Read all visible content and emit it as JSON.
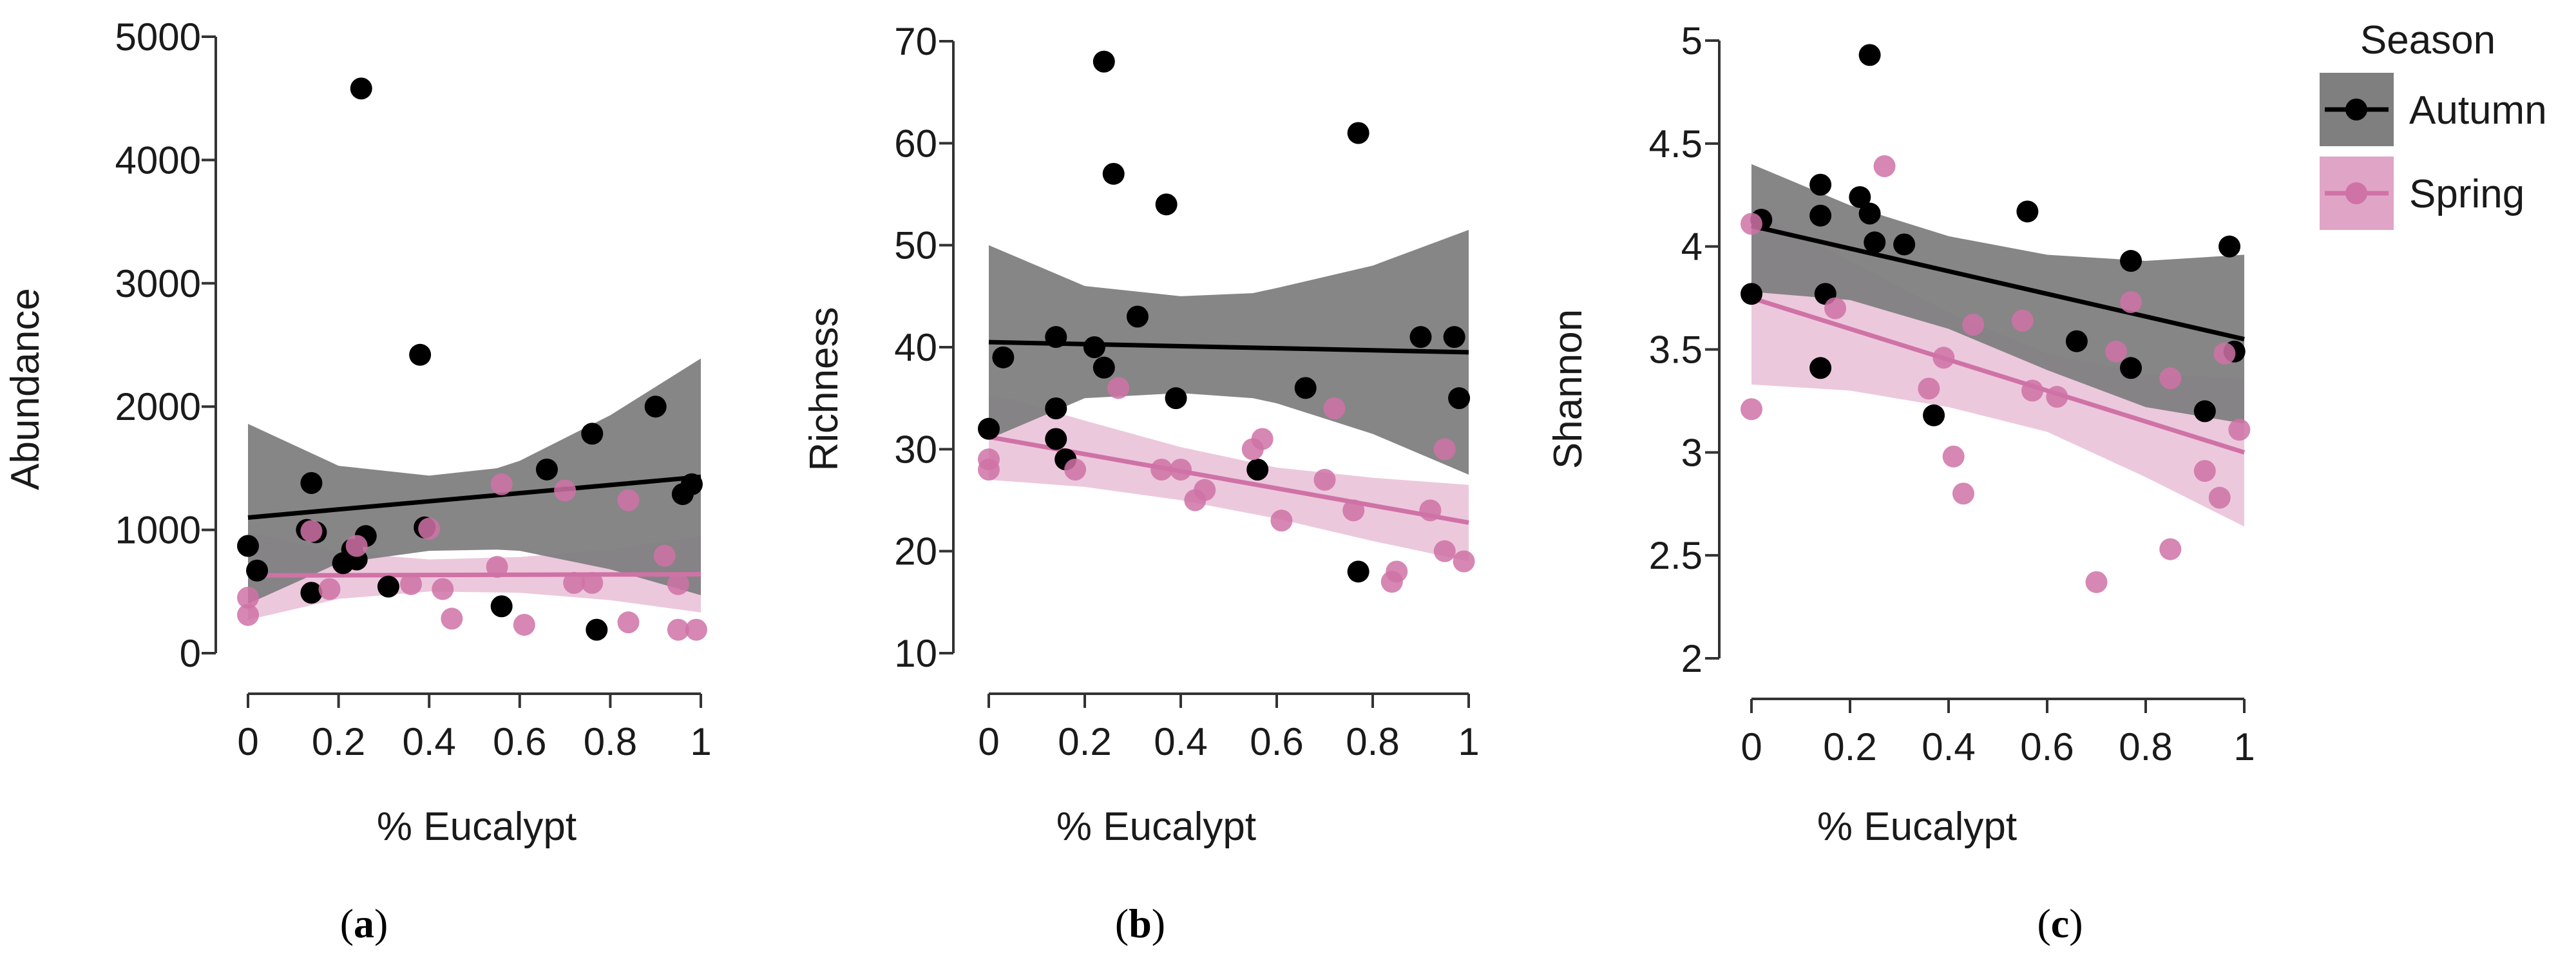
{
  "chart_data": [
    {
      "type": "scatter",
      "caption": "a",
      "xlabel": "% Eucalypt",
      "ylabel": "Abundance",
      "xlim": [
        0,
        1
      ],
      "ylim": [
        0,
        5000
      ],
      "xticks": [
        0,
        0.2,
        0.4,
        0.6,
        0.8,
        1
      ],
      "xtick_labels": [
        "0",
        "0.2",
        "0.4",
        "0.6",
        "0.8",
        "1"
      ],
      "yticks": [
        0,
        1000,
        2000,
        3000,
        4000,
        5000
      ],
      "ytick_labels": [
        "0",
        "1000",
        "2000",
        "3000",
        "4000",
        "5000"
      ],
      "series": [
        {
          "name": "Autumn",
          "color": "#000000",
          "band_color": "#7f7f7f",
          "points": [
            [
              0,
              870
            ],
            [
              0.02,
              670
            ],
            [
              0.13,
              1000
            ],
            [
              0.14,
              1380
            ],
            [
              0.14,
              490
            ],
            [
              0.15,
              980
            ],
            [
              0.21,
              730
            ],
            [
              0.23,
              840
            ],
            [
              0.24,
              760
            ],
            [
              0.25,
              4580
            ],
            [
              0.26,
              950
            ],
            [
              0.31,
              540
            ],
            [
              0.38,
              2420
            ],
            [
              0.39,
              1020
            ],
            [
              0.56,
              380
            ],
            [
              0.66,
              1490
            ],
            [
              0.76,
              1780
            ],
            [
              0.77,
              190
            ],
            [
              0.9,
              2000
            ],
            [
              0.96,
              1290
            ],
            [
              0.98,
              1370
            ]
          ],
          "fit": {
            "x": [
              0,
              1
            ],
            "y": [
              1100,
              1430
            ]
          },
          "ci_lower": {
            "x": [
              0,
              0.2,
              0.4,
              0.55,
              0.6,
              0.8,
              1
            ],
            "y": [
              400,
              730,
              830,
              840,
              830,
              680,
              470
            ]
          },
          "ci_upper": {
            "x": [
              0,
              0.2,
              0.4,
              0.55,
              0.6,
              0.8,
              1
            ],
            "y": [
              1860,
              1520,
              1440,
              1500,
              1560,
              1930,
              2390
            ]
          }
        },
        {
          "name": "Spring",
          "color": "#cf72a6",
          "band_color": "#e0a4c6",
          "points": [
            [
              0,
              450
            ],
            [
              0,
              310
            ],
            [
              0.14,
              990
            ],
            [
              0.18,
              520
            ],
            [
              0.24,
              870
            ],
            [
              0.36,
              560
            ],
            [
              0.4,
              1010
            ],
            [
              0.43,
              520
            ],
            [
              0.45,
              280
            ],
            [
              0.55,
              700
            ],
            [
              0.56,
              1370
            ],
            [
              0.61,
              230
            ],
            [
              0.7,
              1320
            ],
            [
              0.72,
              570
            ],
            [
              0.76,
              570
            ],
            [
              0.84,
              1240
            ],
            [
              0.84,
              250
            ],
            [
              0.92,
              790
            ],
            [
              0.95,
              560
            ],
            [
              0.95,
              190
            ],
            [
              0.99,
              190
            ]
          ],
          "fit": {
            "x": [
              0,
              1
            ],
            "y": [
              630,
              640
            ]
          },
          "ci_lower": {
            "x": [
              0,
              0.2,
              0.4,
              0.6,
              0.8,
              1
            ],
            "y": [
              270,
              440,
              500,
              490,
              430,
              330
            ]
          },
          "ci_upper": {
            "x": [
              0,
              0.2,
              0.4,
              0.6,
              0.8,
              1
            ],
            "y": [
              980,
              820,
              760,
              780,
              840,
              950
            ]
          }
        }
      ]
    },
    {
      "type": "scatter",
      "caption": "b",
      "xlabel": "% Eucalypt",
      "ylabel": "Richness",
      "xlim": [
        0,
        1
      ],
      "ylim": [
        10,
        70
      ],
      "xticks": [
        0,
        0.2,
        0.4,
        0.6,
        0.8,
        1
      ],
      "xtick_labels": [
        "0",
        "0.2",
        "0.4",
        "0.6",
        "0.8",
        "1"
      ],
      "yticks": [
        10,
        20,
        30,
        40,
        50,
        60,
        70
      ],
      "ytick_labels": [
        "10",
        "20",
        "30",
        "40",
        "50",
        "60",
        "70"
      ],
      "series": [
        {
          "name": "Autumn",
          "color": "#000000",
          "band_color": "#7f7f7f",
          "points": [
            [
              0,
              32
            ],
            [
              0.03,
              39
            ],
            [
              0.14,
              34
            ],
            [
              0.14,
              31
            ],
            [
              0.14,
              41
            ],
            [
              0.16,
              29
            ],
            [
              0.22,
              40
            ],
            [
              0.24,
              68
            ],
            [
              0.24,
              38
            ],
            [
              0.26,
              57
            ],
            [
              0.31,
              43
            ],
            [
              0.37,
              54
            ],
            [
              0.39,
              35
            ],
            [
              0.56,
              28
            ],
            [
              0.66,
              36
            ],
            [
              0.77,
              61
            ],
            [
              0.77,
              18
            ],
            [
              0.9,
              41
            ],
            [
              0.97,
              41
            ],
            [
              0.98,
              35
            ]
          ],
          "fit": {
            "x": [
              0,
              1
            ],
            "y": [
              40.5,
              39.5
            ]
          },
          "ci_lower": {
            "x": [
              0,
              0.2,
              0.4,
              0.55,
              0.6,
              0.8,
              1
            ],
            "y": [
              31,
              35,
              35.5,
              35,
              34.5,
              31.5,
              27.5
            ]
          },
          "ci_upper": {
            "x": [
              0,
              0.2,
              0.4,
              0.55,
              0.6,
              0.8,
              1
            ],
            "y": [
              50,
              46,
              45,
              45.3,
              45.8,
              48,
              51.5
            ]
          }
        },
        {
          "name": "Spring",
          "color": "#cf72a6",
          "band_color": "#e0a4c6",
          "points": [
            [
              0,
              29
            ],
            [
              0,
              28
            ],
            [
              0.18,
              28
            ],
            [
              0.27,
              36
            ],
            [
              0.36,
              28
            ],
            [
              0.4,
              28
            ],
            [
              0.43,
              25
            ],
            [
              0.45,
              26
            ],
            [
              0.55,
              30
            ],
            [
              0.57,
              31
            ],
            [
              0.61,
              23
            ],
            [
              0.7,
              27
            ],
            [
              0.72,
              34
            ],
            [
              0.76,
              24
            ],
            [
              0.84,
              17
            ],
            [
              0.85,
              18
            ],
            [
              0.92,
              24
            ],
            [
              0.95,
              30
            ],
            [
              0.95,
              20
            ],
            [
              0.99,
              19
            ]
          ],
          "fit": {
            "x": [
              0,
              1
            ],
            "y": [
              31.2,
              22.8
            ]
          },
          "ci_lower": {
            "x": [
              0,
              0.2,
              0.4,
              0.6,
              0.8,
              1
            ],
            "y": [
              27,
              26.3,
              25,
              23.2,
              21,
              19
            ]
          },
          "ci_upper": {
            "x": [
              0,
              0.2,
              0.4,
              0.6,
              0.8,
              1
            ],
            "y": [
              35.5,
              32.8,
              30.2,
              28.2,
              27.2,
              26.5
            ]
          }
        }
      ]
    },
    {
      "type": "scatter",
      "caption": "c",
      "xlabel": "% Eucalypt",
      "ylabel": "Shannon",
      "xlim": [
        0,
        1
      ],
      "ylim": [
        2,
        5
      ],
      "xticks": [
        0,
        0.2,
        0.4,
        0.6,
        0.8,
        1
      ],
      "xtick_labels": [
        "0",
        "0.2",
        "0.4",
        "0.6",
        "0.8",
        "1"
      ],
      "yticks": [
        2,
        2.5,
        3,
        3.5,
        4,
        4.5,
        5
      ],
      "ytick_labels": [
        "2",
        "2.5",
        "3",
        "3.5",
        "4",
        "4.5",
        "5"
      ],
      "series": [
        {
          "name": "Autumn",
          "color": "#000000",
          "band_color": "#7f7f7f",
          "points": [
            [
              0,
              3.77
            ],
            [
              0.02,
              4.13
            ],
            [
              0.14,
              4.15
            ],
            [
              0.14,
              4.3
            ],
            [
              0.14,
              3.41
            ],
            [
              0.15,
              3.77
            ],
            [
              0.22,
              4.24
            ],
            [
              0.24,
              4.93
            ],
            [
              0.24,
              4.16
            ],
            [
              0.25,
              4.02
            ],
            [
              0.31,
              4.01
            ],
            [
              0.37,
              3.18
            ],
            [
              0.56,
              4.17
            ],
            [
              0.66,
              3.54
            ],
            [
              0.77,
              3.93
            ],
            [
              0.77,
              3.41
            ],
            [
              0.92,
              3.2
            ],
            [
              0.97,
              4.0
            ],
            [
              0.98,
              3.49
            ]
          ],
          "fit": {
            "x": [
              0,
              1
            ],
            "y": [
              4.1,
              3.55
            ]
          },
          "ci_lower": {
            "x": [
              0,
              0.2,
              0.4,
              0.6,
              0.8,
              1
            ],
            "y": [
              3.78,
              3.74,
              3.6,
              3.4,
              3.22,
              3.14
            ]
          },
          "ci_upper": {
            "x": [
              0,
              0.2,
              0.4,
              0.6,
              0.8,
              1
            ],
            "y": [
              4.4,
              4.2,
              4.05,
              3.96,
              3.93,
              3.96
            ]
          }
        },
        {
          "name": "Spring",
          "color": "#cf72a6",
          "band_color": "#e0a4c6",
          "points": [
            [
              0,
              4.11
            ],
            [
              0,
              3.21
            ],
            [
              0.17,
              3.7
            ],
            [
              0.27,
              4.39
            ],
            [
              0.36,
              3.31
            ],
            [
              0.39,
              3.46
            ],
            [
              0.41,
              2.98
            ],
            [
              0.43,
              2.8
            ],
            [
              0.45,
              3.62
            ],
            [
              0.55,
              3.64
            ],
            [
              0.57,
              3.3
            ],
            [
              0.62,
              3.27
            ],
            [
              0.7,
              2.37
            ],
            [
              0.74,
              3.49
            ],
            [
              0.77,
              3.73
            ],
            [
              0.85,
              3.36
            ],
            [
              0.85,
              2.53
            ],
            [
              0.92,
              2.91
            ],
            [
              0.95,
              2.78
            ],
            [
              0.96,
              3.48
            ],
            [
              0.99,
              3.11
            ]
          ],
          "fit": {
            "x": [
              0,
              1
            ],
            "y": [
              3.75,
              3.0
            ]
          },
          "ci_lower": {
            "x": [
              0,
              0.2,
              0.4,
              0.6,
              0.8,
              1
            ],
            "y": [
              3.33,
              3.3,
              3.22,
              3.1,
              2.88,
              2.64
            ]
          },
          "ci_upper": {
            "x": [
              0,
              0.2,
              0.4,
              0.6,
              0.8,
              1
            ],
            "y": [
              4.17,
              3.93,
              3.68,
              3.48,
              3.38,
              3.36
            ]
          }
        }
      ]
    }
  ],
  "legend": {
    "title": "Season",
    "items": [
      {
        "label": "Autumn",
        "color": "#000000",
        "band_color": "#7f7f7f"
      },
      {
        "label": "Spring",
        "color": "#cf72a6",
        "band_color": "#e0a4c6"
      }
    ]
  },
  "captions": [
    "a",
    "b",
    "c"
  ]
}
